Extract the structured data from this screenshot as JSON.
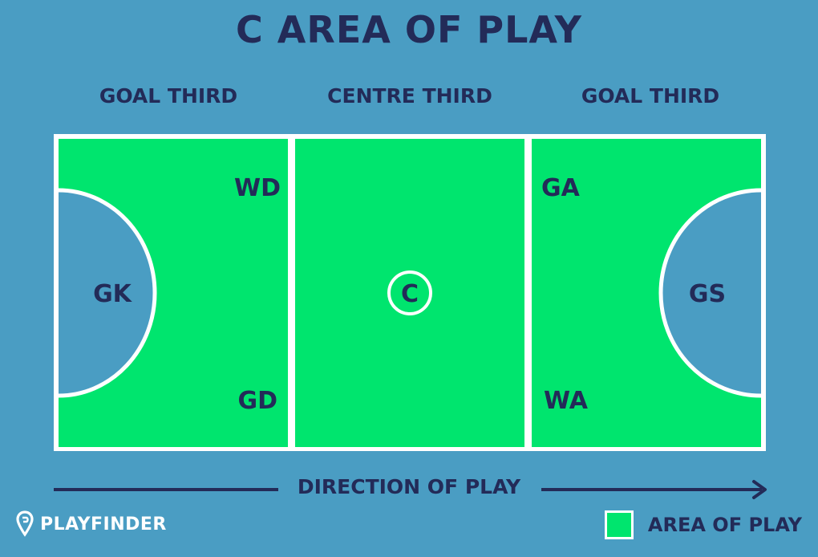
{
  "title": "C AREA OF PLAY",
  "zones": {
    "left": "GOAL THIRD",
    "centre": "CENTRE THIRD",
    "right": "GOAL THIRD"
  },
  "positions": {
    "wd": "WD",
    "gd": "GD",
    "gk": "GK",
    "c": "C",
    "ga": "GA",
    "wa": "WA",
    "gs": "GS"
  },
  "direction": "DIRECTION OF PLAY",
  "brand": "PLAYFINDER",
  "legend": "AREA OF PLAY",
  "colors": {
    "background": "#4a9dc3",
    "area_of_play": "#00e56e",
    "lines": "#ffffff",
    "text": "#232b58"
  }
}
